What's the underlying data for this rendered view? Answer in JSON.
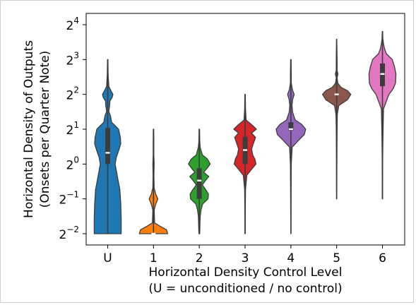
{
  "chart_data": {
    "type": "violin",
    "xlabel": "Horizontal Density Control Level",
    "xlabel_note": "(U = unconditioned / no control)",
    "ylabel": "Horizontal Density of Outputs",
    "ylabel_note": "(Onsets per Quarter Note)",
    "y_scale": "log2",
    "ylim": [
      0.25,
      16
    ],
    "y_ticks": [
      {
        "base": "2",
        "exp": "−2",
        "value": 0.25
      },
      {
        "base": "2",
        "exp": "−1",
        "value": 0.5
      },
      {
        "base": "2",
        "exp": "0",
        "value": 1
      },
      {
        "base": "2",
        "exp": "1",
        "value": 2
      },
      {
        "base": "2",
        "exp": "2",
        "value": 4
      },
      {
        "base": "2",
        "exp": "3",
        "value": 8
      },
      {
        "base": "2",
        "exp": "4",
        "value": 16
      }
    ],
    "categories": [
      "U",
      "1",
      "2",
      "3",
      "4",
      "5",
      "6"
    ],
    "series": [
      {
        "category": "U",
        "color": "#1f77b4",
        "min": 0.25,
        "q1": 1.0,
        "median": 1.25,
        "q3": 2.05,
        "max": 8.0,
        "density": [
          [
            0.25,
            0.62
          ],
          [
            0.33,
            0.62
          ],
          [
            0.45,
            0.6
          ],
          [
            0.6,
            0.56
          ],
          [
            0.75,
            0.46
          ],
          [
            1.0,
            0.34
          ],
          [
            1.15,
            0.4
          ],
          [
            1.3,
            0.5
          ],
          [
            1.5,
            0.6
          ],
          [
            1.7,
            0.58
          ],
          [
            2.0,
            0.5
          ],
          [
            2.3,
            0.18
          ],
          [
            2.6,
            0.13
          ],
          [
            2.85,
            0.05
          ],
          [
            3.2,
            0.09
          ],
          [
            3.5,
            0.1
          ],
          [
            3.75,
            0.2
          ],
          [
            4.0,
            0.24
          ],
          [
            4.3,
            0.15
          ],
          [
            4.7,
            0.05
          ],
          [
            6.0,
            0.02
          ],
          [
            8.0,
            0.01
          ]
        ]
      },
      {
        "category": "1",
        "color": "#ff7f0e",
        "min": 0.25,
        "q1": 0.25,
        "median": 0.25,
        "q3": 0.25,
        "max": 2.0,
        "density": [
          [
            0.25,
            0.65
          ],
          [
            0.27,
            0.6
          ],
          [
            0.29,
            0.3
          ],
          [
            0.31,
            0.05
          ],
          [
            0.4,
            0.03
          ],
          [
            0.45,
            0.1
          ],
          [
            0.5,
            0.2
          ],
          [
            0.55,
            0.1
          ],
          [
            0.62,
            0.03
          ],
          [
            0.8,
            0.02
          ],
          [
            1.0,
            0.03
          ],
          [
            1.2,
            0.015
          ],
          [
            1.6,
            0.015
          ],
          [
            2.0,
            0.01
          ]
        ]
      },
      {
        "category": "2",
        "color": "#2ca02c",
        "min": 0.25,
        "q1": 0.5,
        "median": 0.72,
        "q3": 0.92,
        "max": 2.0,
        "density": [
          [
            0.25,
            0.02
          ],
          [
            0.3,
            0.03
          ],
          [
            0.35,
            0.04
          ],
          [
            0.4,
            0.08
          ],
          [
            0.45,
            0.15
          ],
          [
            0.5,
            0.4
          ],
          [
            0.55,
            0.42
          ],
          [
            0.6,
            0.3
          ],
          [
            0.66,
            0.14
          ],
          [
            0.72,
            0.28
          ],
          [
            0.78,
            0.44
          ],
          [
            0.85,
            0.2
          ],
          [
            0.9,
            0.32
          ],
          [
            1.0,
            0.5
          ],
          [
            1.1,
            0.38
          ],
          [
            1.2,
            0.14
          ],
          [
            1.4,
            0.04
          ],
          [
            1.6,
            0.02
          ],
          [
            2.0,
            0.01
          ]
        ]
      },
      {
        "category": "3",
        "color": "#d62728",
        "min": 0.25,
        "q1": 1.0,
        "median": 1.32,
        "q3": 1.72,
        "max": 4.0,
        "density": [
          [
            0.25,
            0.005
          ],
          [
            0.4,
            0.01
          ],
          [
            0.6,
            0.02
          ],
          [
            0.8,
            0.08
          ],
          [
            0.9,
            0.3
          ],
          [
            1.0,
            0.5
          ],
          [
            1.1,
            0.45
          ],
          [
            1.2,
            0.35
          ],
          [
            1.35,
            0.3
          ],
          [
            1.5,
            0.38
          ],
          [
            1.7,
            0.48
          ],
          [
            1.85,
            0.3
          ],
          [
            2.0,
            0.52
          ],
          [
            2.15,
            0.35
          ],
          [
            2.4,
            0.05
          ],
          [
            3.0,
            0.02
          ],
          [
            4.0,
            0.01
          ]
        ]
      },
      {
        "category": "4",
        "color": "#9467bd",
        "min": 0.25,
        "q1": 1.95,
        "median": 2.0,
        "q3": 2.3,
        "max": 8.0,
        "density": [
          [
            0.25,
            0.005
          ],
          [
            0.5,
            0.01
          ],
          [
            1.0,
            0.02
          ],
          [
            1.4,
            0.06
          ],
          [
            1.6,
            0.35
          ],
          [
            1.8,
            0.62
          ],
          [
            2.0,
            0.68
          ],
          [
            2.2,
            0.5
          ],
          [
            2.4,
            0.2
          ],
          [
            2.8,
            0.08
          ],
          [
            3.2,
            0.05
          ],
          [
            3.6,
            0.08
          ],
          [
            4.0,
            0.15
          ],
          [
            4.4,
            0.07
          ],
          [
            5.0,
            0.02
          ],
          [
            6.0,
            0.02
          ],
          [
            8.0,
            0.01
          ]
        ]
      },
      {
        "category": "5",
        "color": "#8c564b",
        "min": 0.5,
        "q1": 4.0,
        "median": 4.0,
        "q3": 4.0,
        "max": 12.0,
        "density": [
          [
            0.5,
            0.005
          ],
          [
            1.0,
            0.01
          ],
          [
            2.0,
            0.02
          ],
          [
            2.7,
            0.03
          ],
          [
            3.2,
            0.1
          ],
          [
            3.6,
            0.5
          ],
          [
            4.0,
            0.65
          ],
          [
            4.3,
            0.5
          ],
          [
            4.6,
            0.2
          ],
          [
            5.0,
            0.05
          ],
          [
            5.6,
            0.02
          ],
          [
            6.0,
            0.06
          ],
          [
            6.4,
            0.02
          ],
          [
            8.0,
            0.02
          ],
          [
            12.0,
            0.005
          ]
        ]
      },
      {
        "category": "6",
        "color": "#e377c2",
        "min": 0.5,
        "q1": 4.7,
        "median": 6.0,
        "q3": 7.4,
        "max": 14.0,
        "density": [
          [
            0.5,
            0.005
          ],
          [
            1.0,
            0.01
          ],
          [
            1.5,
            0.02
          ],
          [
            2.0,
            0.03
          ],
          [
            3.0,
            0.05
          ],
          [
            4.0,
            0.3
          ],
          [
            4.5,
            0.5
          ],
          [
            5.0,
            0.6
          ],
          [
            6.0,
            0.62
          ],
          [
            7.0,
            0.55
          ],
          [
            8.0,
            0.45
          ],
          [
            9.0,
            0.18
          ],
          [
            10.0,
            0.09
          ],
          [
            11.0,
            0.05
          ],
          [
            12.0,
            0.02
          ],
          [
            14.0,
            0.01
          ]
        ]
      }
    ]
  }
}
